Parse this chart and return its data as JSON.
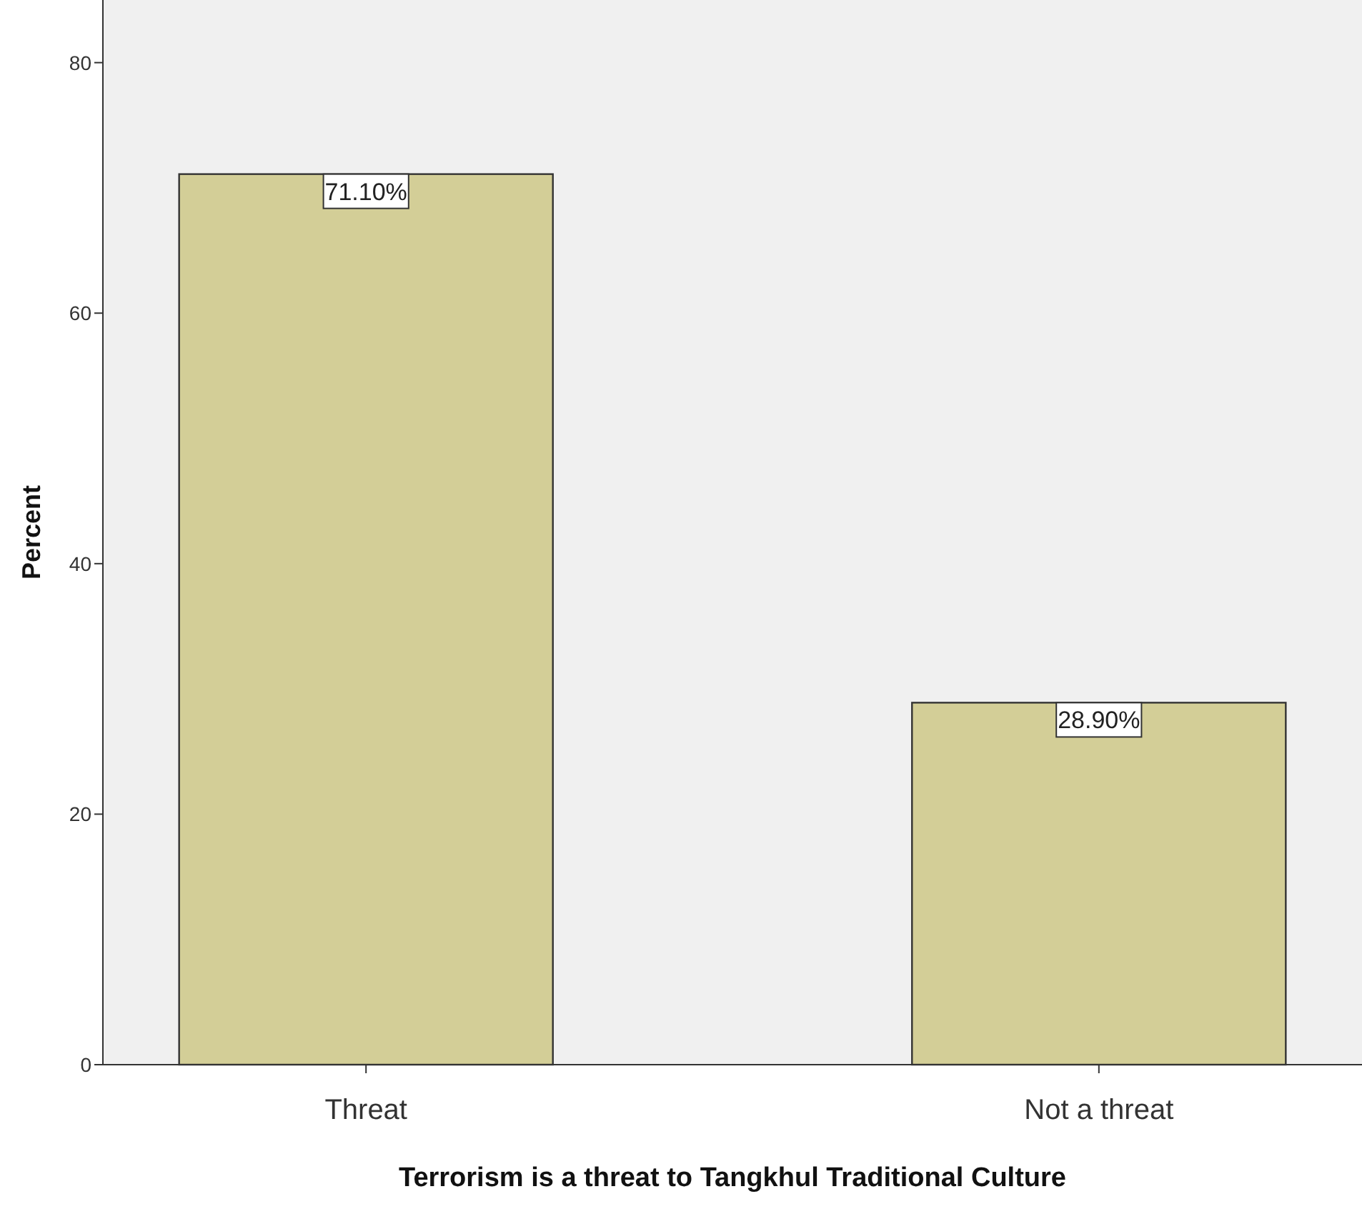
{
  "chart_data": {
    "type": "bar",
    "xlabel": "Terrorism is a threat to Tangkhul Traditional Culture",
    "ylabel": "Percent",
    "categories": [
      "Threat",
      "Not a threat"
    ],
    "values": [
      71.1,
      28.9
    ],
    "value_labels": [
      "71.10%",
      "28.90%"
    ],
    "color": "#d3ce97",
    "ylim": [
      0,
      85
    ],
    "yticks": [
      0,
      20,
      40,
      60,
      80
    ],
    "grid": false
  }
}
